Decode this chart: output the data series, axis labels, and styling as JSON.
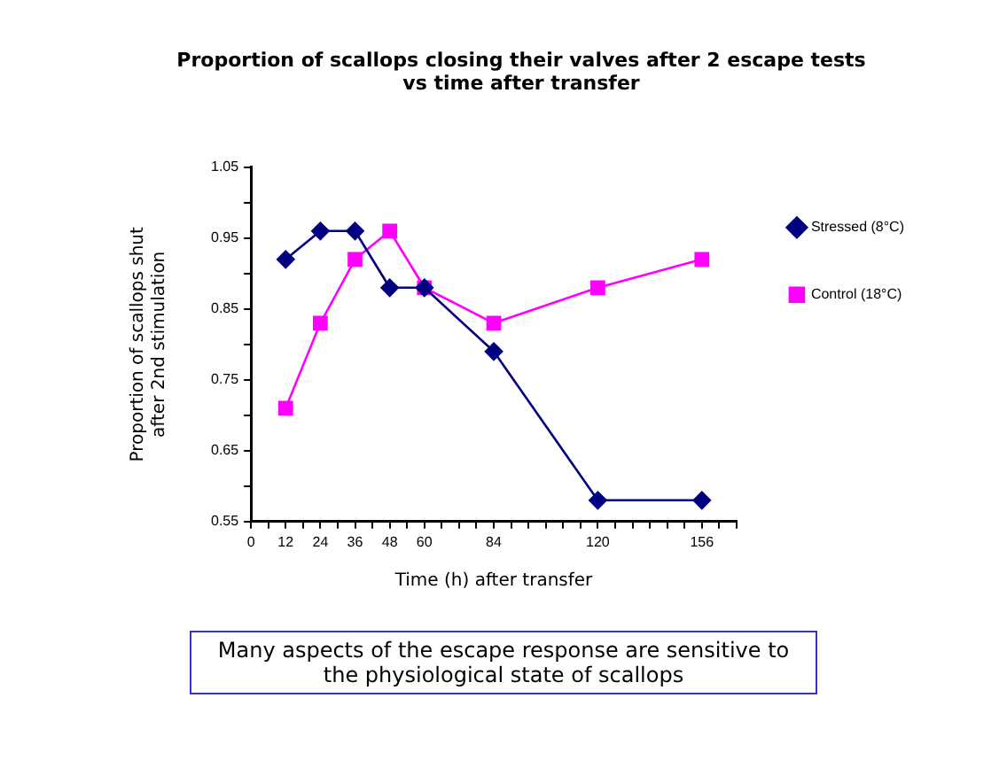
{
  "chart_data": {
    "type": "line",
    "title": "Proportion of scallops closing their valves after 2 escape tests\nvs time after transfer",
    "xlabel": "Time (h) after transfer",
    "ylabel": "Proportion of scallops shut\nafter 2nd stimulation",
    "x": [
      12,
      24,
      36,
      48,
      60,
      84,
      120,
      156
    ],
    "series": [
      {
        "name": "Control (18°C)",
        "color": "#ff00ff",
        "marker": "square",
        "values": [
          0.71,
          0.83,
          0.92,
          0.96,
          0.88,
          0.83,
          0.88,
          0.92
        ]
      },
      {
        "name": "Stressed (8°C)",
        "color": "#000080",
        "marker": "diamond",
        "values": [
          0.92,
          0.96,
          0.96,
          0.88,
          0.88,
          0.79,
          0.58,
          0.58
        ]
      }
    ],
    "xlim": [
      0,
      168
    ],
    "xticks": [
      0,
      {
        "value": 6,
        "label": null
      },
      12,
      {
        "value": 18,
        "label": null
      },
      24,
      {
        "value": 30,
        "label": null
      },
      36,
      {
        "value": 42,
        "label": null
      },
      48,
      {
        "value": 54,
        "label": null
      },
      60,
      {
        "value": 66,
        "label": null
      },
      {
        "value": 72,
        "label": null
      },
      {
        "value": 78,
        "label": null
      },
      84,
      {
        "value": 90,
        "label": null
      },
      {
        "value": 96,
        "label": null
      },
      {
        "value": 102,
        "label": null
      },
      {
        "value": 108,
        "label": null
      },
      {
        "value": 114,
        "label": null
      },
      120,
      {
        "value": 126,
        "label": null
      },
      {
        "value": 132,
        "label": null
      },
      {
        "value": 138,
        "label": null
      },
      {
        "value": 144,
        "label": null
      },
      {
        "value": 150,
        "label": null
      },
      156,
      {
        "value": 162,
        "label": null
      },
      {
        "value": 168,
        "label": null
      }
    ],
    "ylim": [
      0.55,
      1.05
    ],
    "yticks": [
      0.55,
      {
        "value": 0.6,
        "label": null
      },
      0.65,
      {
        "value": 0.7,
        "label": null
      },
      0.75,
      {
        "value": 0.8,
        "label": null
      },
      0.85,
      {
        "value": 0.9,
        "label": null
      },
      0.95,
      {
        "value": 1.0,
        "label": null
      },
      1.05
    ],
    "grid": false,
    "legend": "top right",
    "annotations": [
      "Many aspects of the escape response are sensitive to the physiological state of scallops"
    ]
  }
}
